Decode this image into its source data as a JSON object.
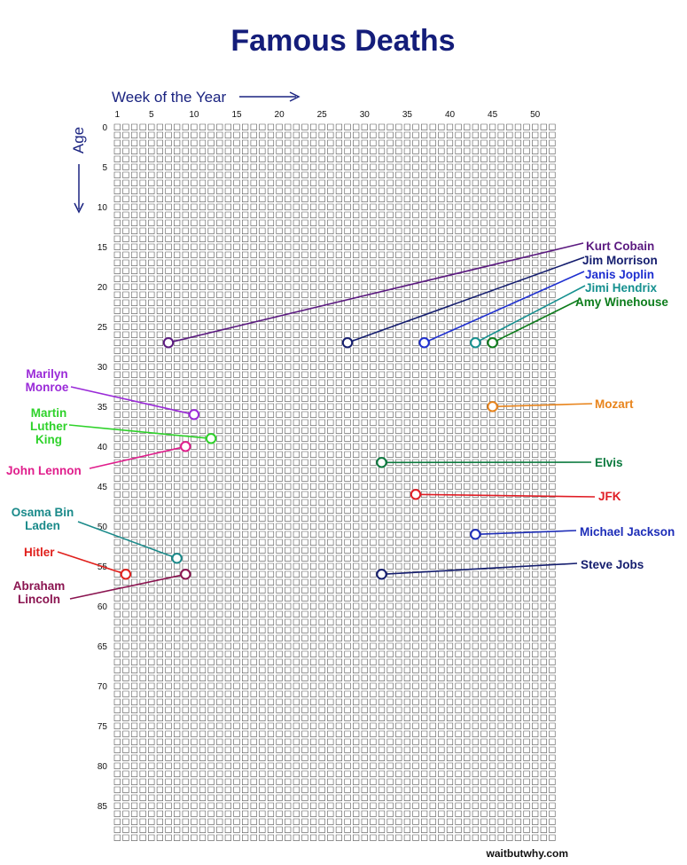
{
  "colors": {
    "title": "#141d7a",
    "axis": "#1a2380",
    "grid": "#555555"
  },
  "credit": "waitbutwhy.com",
  "chart_data": {
    "type": "scatter",
    "title": "Famous Deaths",
    "xlabel": "Week of the Year",
    "ylabel": "Age",
    "x_range": [
      1,
      52
    ],
    "y_range": [
      0,
      89
    ],
    "x_ticks": [
      1,
      5,
      10,
      15,
      20,
      25,
      30,
      35,
      40,
      45,
      50
    ],
    "y_ticks": [
      0,
      5,
      10,
      15,
      20,
      25,
      30,
      35,
      40,
      45,
      50,
      55,
      60,
      65,
      70,
      75,
      80,
      85
    ],
    "grid": true,
    "points": [
      {
        "name": "Kurt Cobain",
        "label_lines": [
          "Kurt Cobain"
        ],
        "week": 7,
        "age": 27,
        "color": "#5b1a80"
      },
      {
        "name": "Jim Morrison",
        "label_lines": [
          "Jim Morrison"
        ],
        "week": 28,
        "age": 27,
        "color": "#141d6e"
      },
      {
        "name": "Janis Joplin",
        "label_lines": [
          "Janis Joplin"
        ],
        "week": 37,
        "age": 27,
        "color": "#1e2fd0"
      },
      {
        "name": "Jimi Hendrix",
        "label_lines": [
          "Jimi Hendrix"
        ],
        "week": 43,
        "age": 27,
        "color": "#15908f"
      },
      {
        "name": "Amy Winehouse",
        "label_lines": [
          "Amy Winehouse"
        ],
        "week": 45,
        "age": 27,
        "color": "#0d7d1c"
      },
      {
        "name": "Marilyn Monroe",
        "label_lines": [
          "Marilyn",
          "Monroe"
        ],
        "week": 10,
        "age": 36,
        "color": "#9a2ad8"
      },
      {
        "name": "Mozart",
        "label_lines": [
          "Mozart"
        ],
        "week": 45,
        "age": 35,
        "color": "#e8841c"
      },
      {
        "name": "Martin Luther King",
        "label_lines": [
          "Martin",
          "Luther",
          "King"
        ],
        "week": 12,
        "age": 39,
        "color": "#2ed22a"
      },
      {
        "name": "John Lennon",
        "label_lines": [
          "John Lennon"
        ],
        "week": 9,
        "age": 40,
        "color": "#e01e8c"
      },
      {
        "name": "Elvis",
        "label_lines": [
          "Elvis"
        ],
        "week": 32,
        "age": 42,
        "color": "#0b7a3e"
      },
      {
        "name": "JFK",
        "label_lines": [
          "JFK"
        ],
        "week": 36,
        "age": 46,
        "color": "#e01c24"
      },
      {
        "name": "Michael Jackson",
        "label_lines": [
          "Michael Jackson"
        ],
        "week": 43,
        "age": 51,
        "color": "#1d2db8"
      },
      {
        "name": "Osama Bin Laden",
        "label_lines": [
          "Osama Bin",
          "Laden"
        ],
        "week": 8,
        "age": 54,
        "color": "#1a8a8a"
      },
      {
        "name": "Hitler",
        "label_lines": [
          "Hitler"
        ],
        "week": 2,
        "age": 56,
        "color": "#e0201c"
      },
      {
        "name": "Abraham Lincoln",
        "label_lines": [
          "Abraham",
          "Lincoln"
        ],
        "week": 9,
        "age": 56,
        "color": "#8a1450"
      },
      {
        "name": "Steve Jobs",
        "label_lines": [
          "Steve Jobs"
        ],
        "week": 32,
        "age": 56,
        "color": "#141d6e"
      }
    ]
  }
}
